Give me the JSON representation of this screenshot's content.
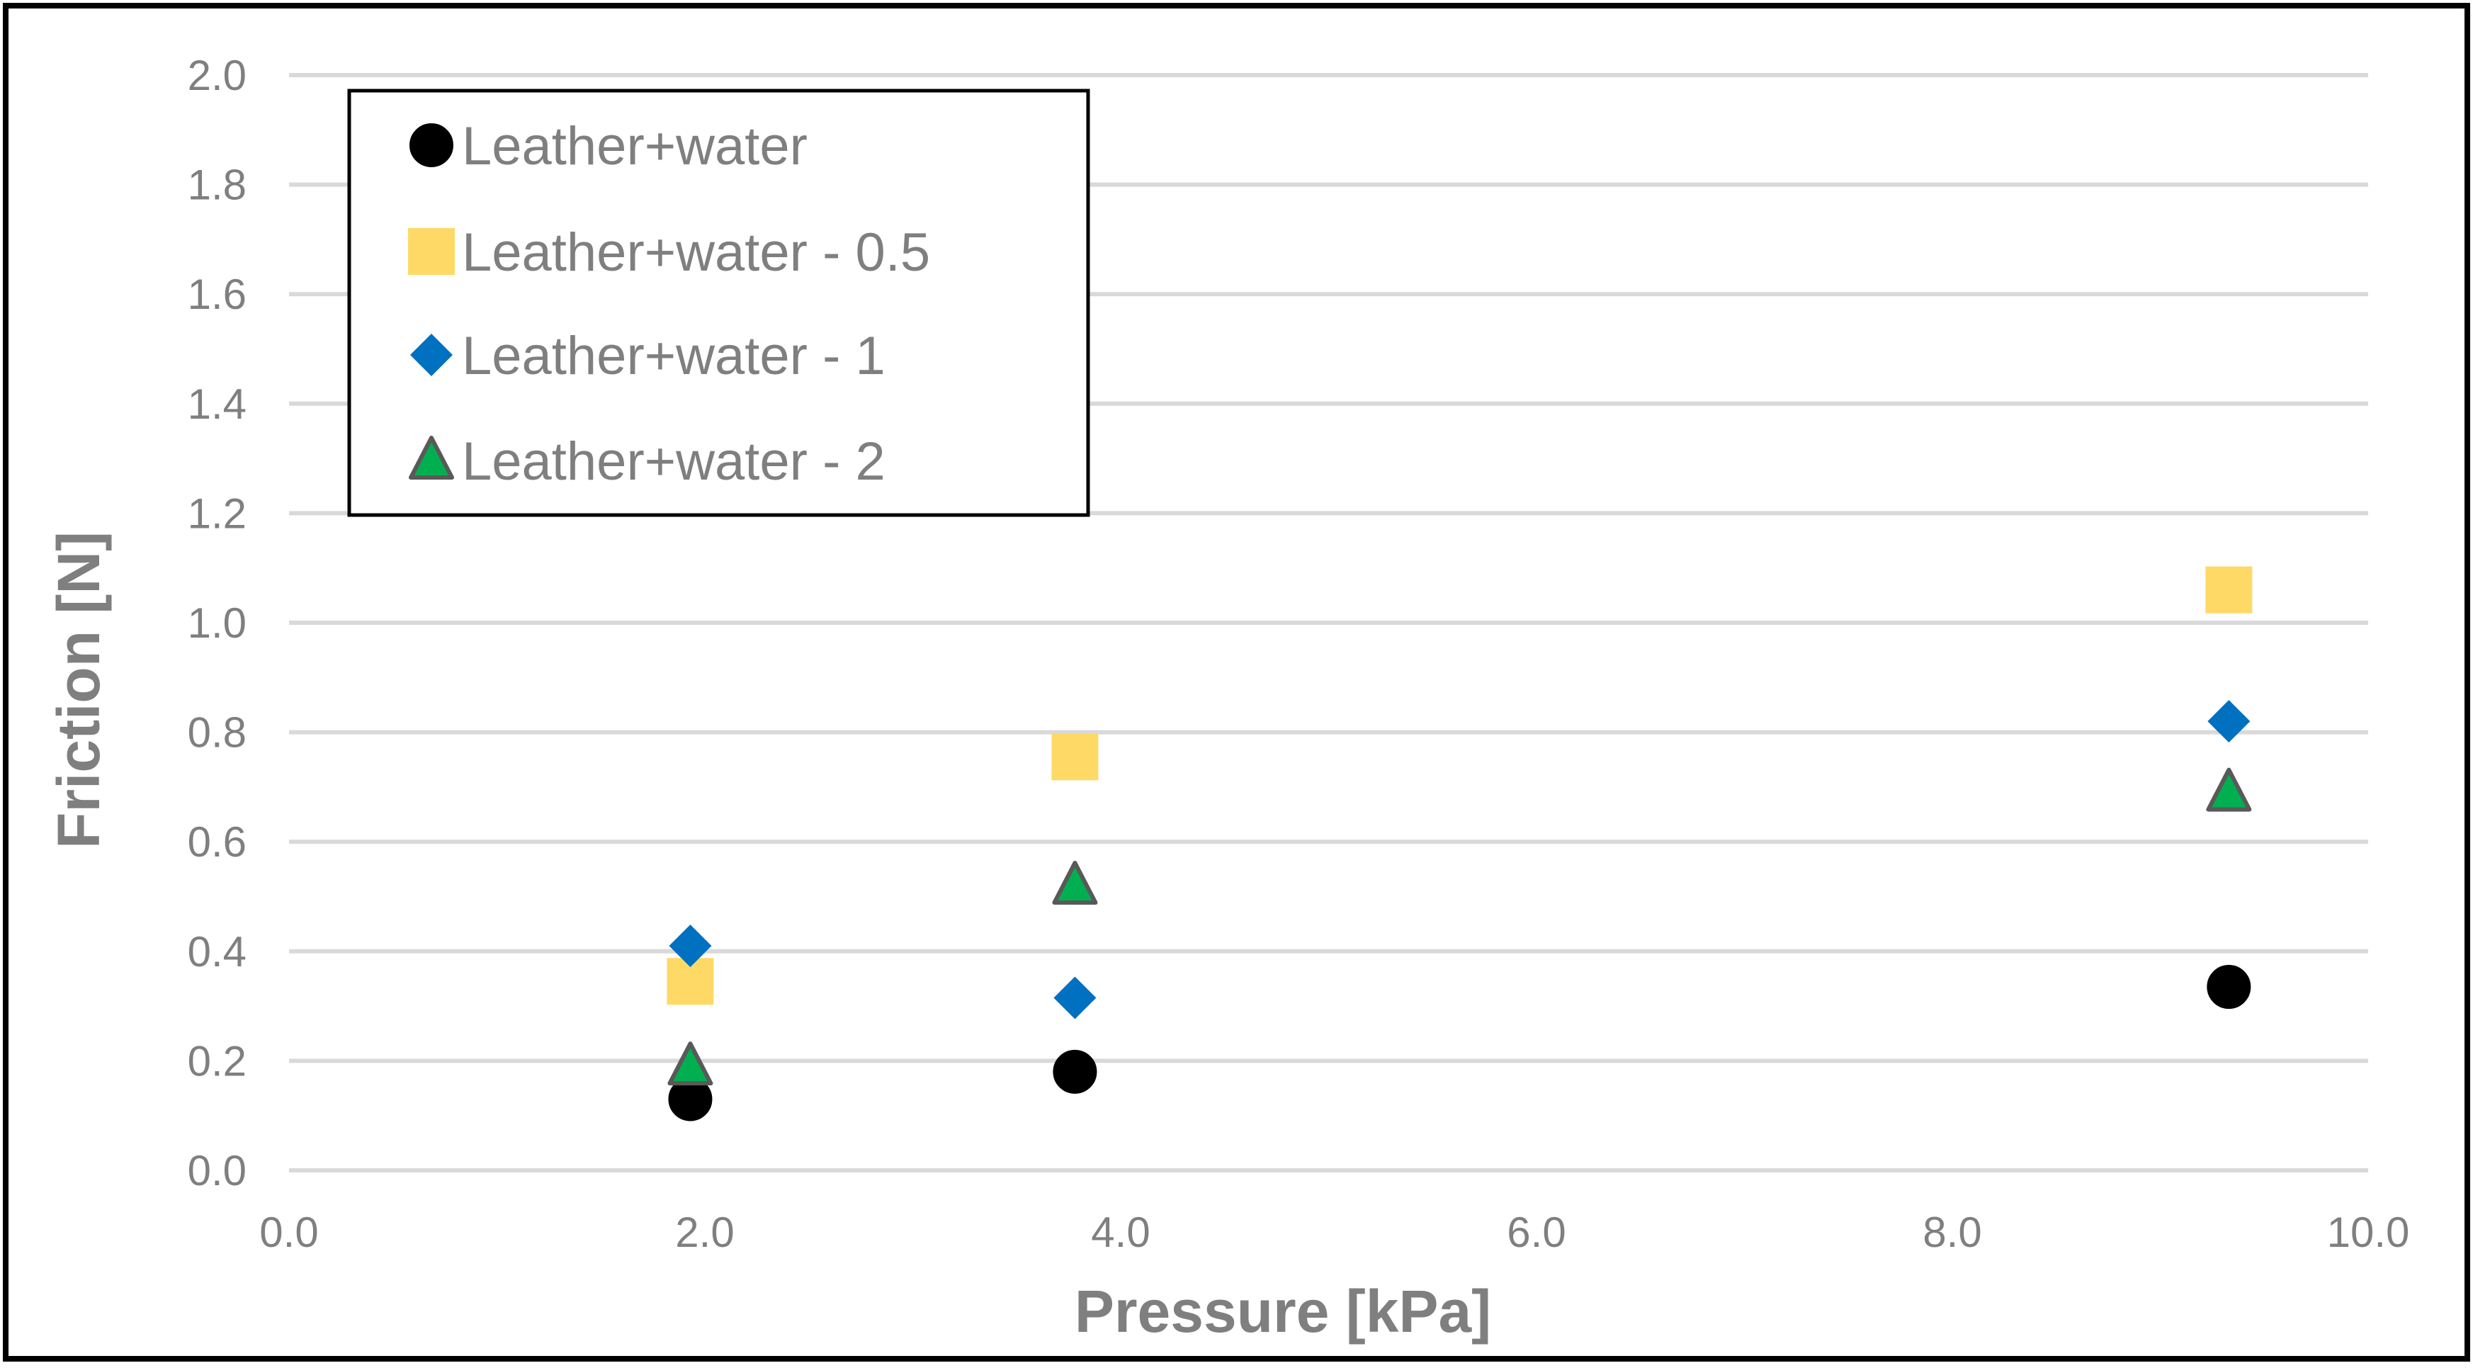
{
  "chart_data": {
    "type": "scatter",
    "title": "",
    "xlabel": "Pressure [kPa]",
    "ylabel": "Friction [N]",
    "xlim": [
      0,
      10
    ],
    "ylim": [
      0,
      2
    ],
    "x_ticks": [
      "0.0",
      "2.0",
      "4.0",
      "6.0",
      "8.0",
      "10.0"
    ],
    "y_ticks": [
      "0.0",
      "0.2",
      "0.4",
      "0.6",
      "0.8",
      "1.0",
      "1.2",
      "1.4",
      "1.6",
      "1.8",
      "2.0"
    ],
    "grid": "horizontal",
    "legend_position": "top-left",
    "series": [
      {
        "name": "Leather+water",
        "marker": "circle",
        "color": "#000000",
        "points": [
          [
            1.93,
            0.13
          ],
          [
            3.78,
            0.18
          ],
          [
            9.33,
            0.335
          ]
        ]
      },
      {
        "name": "Leather+water - 0.5",
        "marker": "square",
        "color": "#ffd966",
        "points": [
          [
            1.93,
            0.345
          ],
          [
            3.78,
            0.755
          ],
          [
            9.33,
            1.06
          ]
        ]
      },
      {
        "name": "Leather+water - 1",
        "marker": "diamond",
        "color": "#0070c0",
        "points": [
          [
            1.93,
            0.41
          ],
          [
            3.78,
            0.315
          ],
          [
            9.33,
            0.82
          ]
        ]
      },
      {
        "name": "Leather+water - 2",
        "marker": "triangle",
        "color": "#00b050",
        "edge_color": "#595959",
        "points": [
          [
            1.93,
            0.19
          ],
          [
            3.78,
            0.52
          ],
          [
            9.33,
            0.69
          ]
        ]
      }
    ]
  }
}
